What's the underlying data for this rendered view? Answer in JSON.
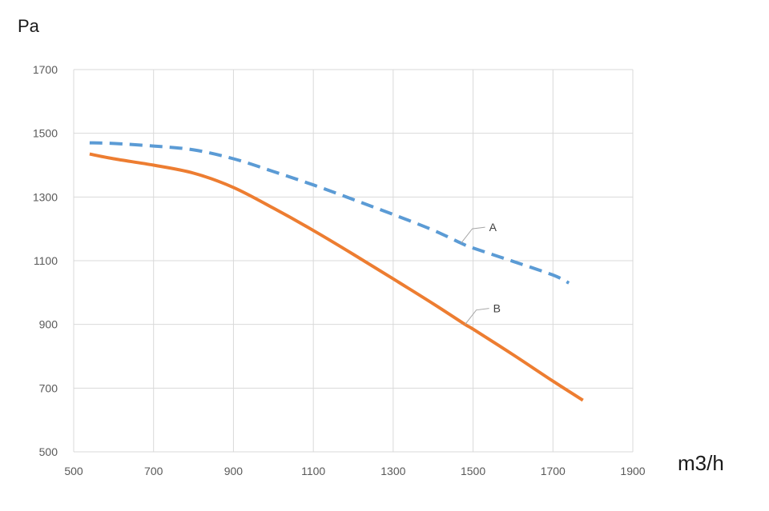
{
  "chart_data": {
    "type": "line",
    "ylabel": "Pa",
    "xlabel": "m3/h",
    "xlim": [
      500,
      1900
    ],
    "ylim": [
      500,
      1700
    ],
    "x_ticks": [
      500,
      700,
      900,
      1100,
      1300,
      1500,
      1700,
      1900
    ],
    "y_ticks": [
      500,
      700,
      900,
      1100,
      1300,
      1500,
      1700
    ],
    "grid": true,
    "series": [
      {
        "name": "A",
        "color": "#5b9bd5",
        "style": "dashed",
        "x": [
          540,
          600,
          700,
          800,
          900,
          1000,
          1100,
          1200,
          1300,
          1400,
          1470,
          1500,
          1600,
          1700,
          1740
        ],
        "y": [
          1470,
          1468,
          1460,
          1448,
          1420,
          1380,
          1338,
          1292,
          1245,
          1196,
          1155,
          1140,
          1098,
          1055,
          1030
        ]
      },
      {
        "name": "B",
        "color": "#ed7d31",
        "style": "solid",
        "x": [
          540,
          600,
          700,
          800,
          900,
          1000,
          1100,
          1200,
          1300,
          1400,
          1480,
          1500,
          1600,
          1700,
          1775
        ],
        "y": [
          1435,
          1420,
          1400,
          1375,
          1330,
          1265,
          1195,
          1120,
          1043,
          965,
          900,
          885,
          805,
          722,
          662
        ]
      }
    ],
    "annotations": [
      {
        "label": "A",
        "series": "A",
        "at_x": 1470
      },
      {
        "label": "B",
        "series": "B",
        "at_x": 1480
      }
    ]
  }
}
